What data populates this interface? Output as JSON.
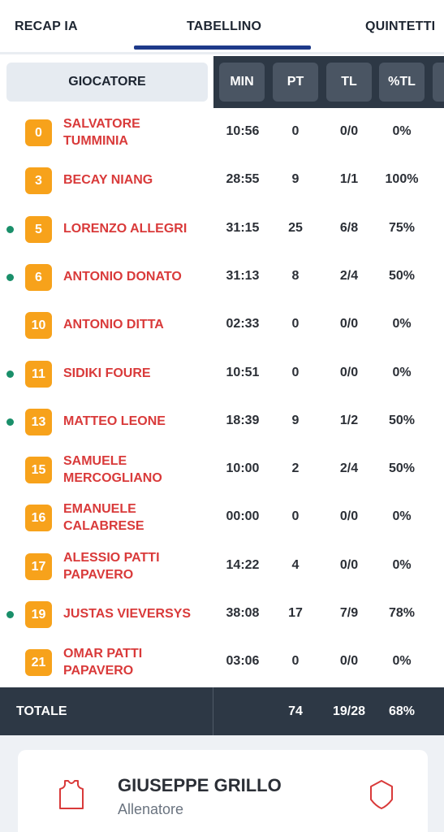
{
  "tabs": {
    "recap": "RECAP IA",
    "tabellino": "TABELLINO",
    "quintetti": "QUINTETTI",
    "active": "TABELLINO"
  },
  "table_header": {
    "player": "GIOCATORE",
    "min": "MIN",
    "pt": "PT",
    "tl": "TL",
    "ptl": "%TL"
  },
  "players": [
    {
      "number": "0",
      "name": "SALVATORE TUMMINIA",
      "line1": "SALVATORE",
      "line2": "TUMMINIA",
      "on_court": false,
      "min": "10:56",
      "pt": "0",
      "tl": "0/0",
      "ptl": "0%"
    },
    {
      "number": "3",
      "name": "BECAY NIANG",
      "line1": "BECAY NIANG",
      "line2": "",
      "on_court": false,
      "min": "28:55",
      "pt": "9",
      "tl": "1/1",
      "ptl": "100%"
    },
    {
      "number": "5",
      "name": "LORENZO ALLEGRI",
      "line1": "LORENZO ALLEGRI",
      "line2": "",
      "on_court": true,
      "min": "31:15",
      "pt": "25",
      "tl": "6/8",
      "ptl": "75%"
    },
    {
      "number": "6",
      "name": "ANTONIO DONATO",
      "line1": "ANTONIO DONATO",
      "line2": "",
      "on_court": true,
      "min": "31:13",
      "pt": "8",
      "tl": "2/4",
      "ptl": "50%"
    },
    {
      "number": "10",
      "name": "ANTONIO DITTA",
      "line1": "ANTONIO DITTA",
      "line2": "",
      "on_court": false,
      "min": "02:33",
      "pt": "0",
      "tl": "0/0",
      "ptl": "0%"
    },
    {
      "number": "11",
      "name": "SIDIKI FOURE",
      "line1": "SIDIKI FOURE",
      "line2": "",
      "on_court": true,
      "min": "10:51",
      "pt": "0",
      "tl": "0/0",
      "ptl": "0%"
    },
    {
      "number": "13",
      "name": "MATTEO LEONE",
      "line1": "MATTEO LEONE",
      "line2": "",
      "on_court": true,
      "min": "18:39",
      "pt": "9",
      "tl": "1/2",
      "ptl": "50%"
    },
    {
      "number": "15",
      "name": "SAMUELE MERCOGLIANO",
      "line1": "SAMUELE",
      "line2": "MERCOGLIANO",
      "on_court": false,
      "min": "10:00",
      "pt": "2",
      "tl": "2/4",
      "ptl": "50%"
    },
    {
      "number": "16",
      "name": "EMANUELE CALABRESE",
      "line1": "EMANUELE",
      "line2": "CALABRESE",
      "on_court": false,
      "min": "00:00",
      "pt": "0",
      "tl": "0/0",
      "ptl": "0%"
    },
    {
      "number": "17",
      "name": "ALESSIO PATTI PAPAVERO",
      "line1": "ALESSIO PATTI",
      "line2": "PAPAVERO",
      "on_court": false,
      "min": "14:22",
      "pt": "4",
      "tl": "0/0",
      "ptl": "0%"
    },
    {
      "number": "19",
      "name": "JUSTAS VIEVERSYS",
      "line1": "JUSTAS VIEVERSYS",
      "line2": "",
      "on_court": true,
      "min": "38:08",
      "pt": "17",
      "tl": "7/9",
      "ptl": "78%"
    },
    {
      "number": "21",
      "name": "OMAR PATTI PAPAVERO",
      "line1": "OMAR PATTI",
      "line2": "PAPAVERO",
      "on_court": false,
      "min": "03:06",
      "pt": "0",
      "tl": "0/0",
      "ptl": "0%"
    }
  ],
  "totals": {
    "label": "TOTALE",
    "pt": "74",
    "tl": "19/28",
    "ptl": "68%"
  },
  "coach": {
    "name": "GIUSEPPE GRILLO",
    "role": "Allenatore",
    "left_icon": "jersey-icon",
    "right_icon": "shield-icon"
  },
  "colors": {
    "accent": "#1e3a8a",
    "player_name": "#d93a3a",
    "badge": "#f7a21b",
    "on_court_dot": "#1a8f6a",
    "header_dark": "#2d3845"
  }
}
